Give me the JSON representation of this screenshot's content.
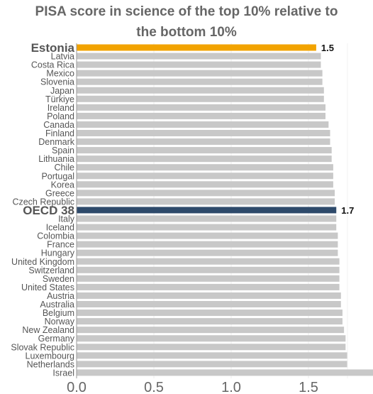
{
  "chart_data": {
    "type": "bar",
    "orientation": "horizontal",
    "title_lines": [
      "PISA score in science of the top 10% relative to",
      "the bottom 10%"
    ],
    "categories": [
      "Estonia",
      "Latvia",
      "Costa Rica",
      "Mexico",
      "Slovenia",
      "Japan",
      "Türkiye",
      "Ireland",
      "Poland",
      "Canada",
      "Finland",
      "Denmark",
      "Spain",
      "Lithuania",
      "Chile",
      "Portugal",
      "Korea",
      "Greece",
      "Czech Republic",
      "OECD 38",
      "Italy",
      "Iceland",
      "Colombia",
      "France",
      "Hungary",
      "United Kingdom",
      "Switzerland",
      "Sweden",
      "United States",
      "Austria",
      "Australia",
      "Belgium",
      "Norway",
      "New Zealand",
      "Germany",
      "Slovak Republic",
      "Luxembourg",
      "Netherlands",
      "Israel"
    ],
    "values": [
      1.55,
      1.58,
      1.58,
      1.59,
      1.59,
      1.6,
      1.6,
      1.61,
      1.61,
      1.63,
      1.64,
      1.64,
      1.65,
      1.65,
      1.66,
      1.66,
      1.66,
      1.67,
      1.67,
      1.68,
      1.68,
      1.68,
      1.69,
      1.69,
      1.69,
      1.7,
      1.7,
      1.7,
      1.7,
      1.71,
      1.71,
      1.72,
      1.72,
      1.73,
      1.74,
      1.74,
      1.75,
      1.75,
      1.94
    ],
    "highlights": [
      {
        "category": "Estonia",
        "color": "#F2A300",
        "value_label": "1.5"
      },
      {
        "category": "OECD 38",
        "color": "#2E4A6B",
        "value_label": "1.7"
      }
    ],
    "bar_color": "#C8C8C8",
    "xlim": [
      0,
      1.92
    ],
    "xticks": [
      "0.0",
      "0.5",
      "1.0",
      "1.5"
    ],
    "grid": true
  }
}
